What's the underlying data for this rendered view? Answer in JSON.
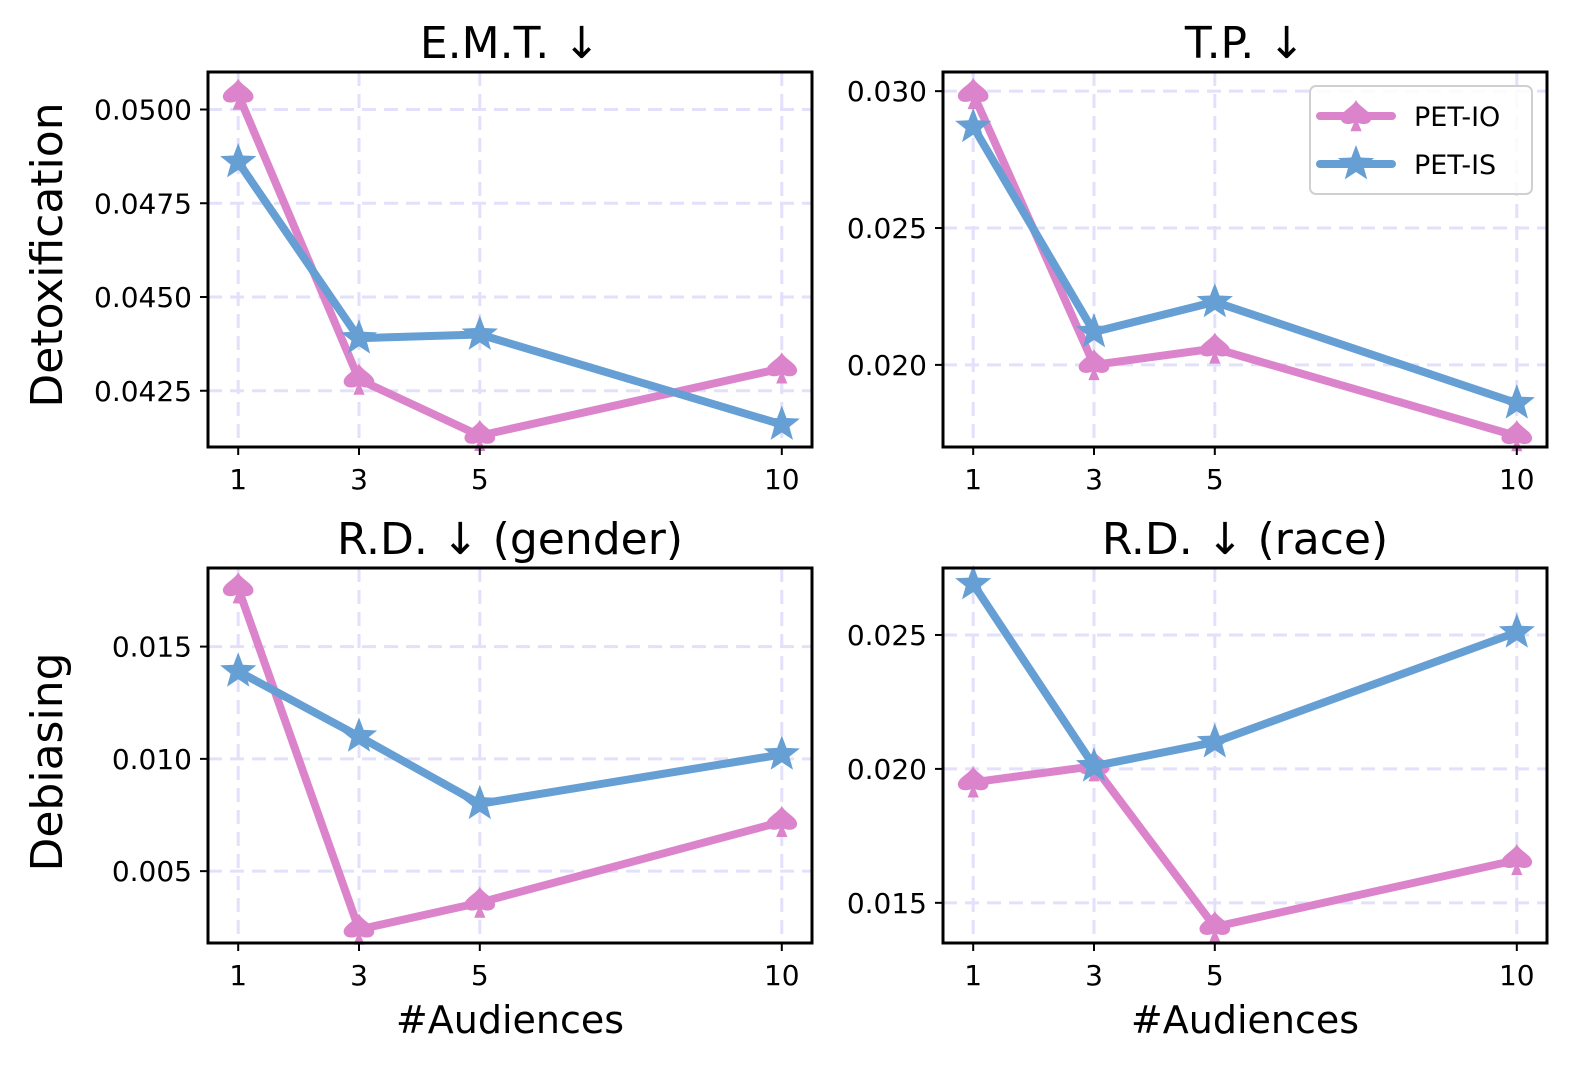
{
  "colors": {
    "pet_io": "#db84cc",
    "pet_is": "#669fd4",
    "grid": "#e2e0fb",
    "frame": "#000000"
  },
  "row_labels": [
    "Detoxification",
    "Debiasing"
  ],
  "xlabel": "#Audiences",
  "legend": {
    "placement": "upper right of the T.P. panel",
    "entries": [
      {
        "label": "PET-IO",
        "marker": "spade",
        "color": "#db84cc"
      },
      {
        "label": "PET-IS",
        "marker": "star",
        "color": "#669fd4"
      }
    ]
  },
  "chart_data": [
    {
      "type": "line",
      "title": "E.M.T. ↓",
      "xlabel": "",
      "ylabel": "Detoxification",
      "x": [
        1,
        3,
        5,
        10
      ],
      "xlim": [
        0.5,
        10.5
      ],
      "ylim": [
        0.041,
        0.051
      ],
      "xticks": [
        "1",
        "3",
        "5",
        "10"
      ],
      "yticks": [
        "0.0425",
        "0.0450",
        "0.0475",
        "0.0500"
      ],
      "grid": true,
      "series": [
        {
          "name": "PET-IO",
          "values": [
            0.0504,
            0.0428,
            0.0413,
            0.0431
          ]
        },
        {
          "name": "PET-IS",
          "values": [
            0.0486,
            0.0439,
            0.044,
            0.0416
          ]
        }
      ]
    },
    {
      "type": "line",
      "title": "T.P. ↓",
      "xlabel": "",
      "ylabel": "",
      "x": [
        1,
        3,
        5,
        10
      ],
      "xlim": [
        0.5,
        10.5
      ],
      "ylim": [
        0.017,
        0.0307
      ],
      "xticks": [
        "1",
        "3",
        "5",
        "10"
      ],
      "yticks": [
        "0.020",
        "0.025",
        "0.030"
      ],
      "grid": true,
      "legend": true,
      "series": [
        {
          "name": "PET-IO",
          "values": [
            0.0299,
            0.02,
            0.0206,
            0.0174
          ]
        },
        {
          "name": "PET-IS",
          "values": [
            0.0287,
            0.0212,
            0.0223,
            0.0186
          ]
        }
      ]
    },
    {
      "type": "line",
      "title": "R.D. ↓ (gender)",
      "xlabel": "#Audiences",
      "ylabel": "Debiasing",
      "x": [
        1,
        3,
        5,
        10
      ],
      "xlim": [
        0.5,
        10.5
      ],
      "ylim": [
        0.0018,
        0.0185
      ],
      "xticks": [
        "1",
        "3",
        "5",
        "10"
      ],
      "yticks": [
        "0.005",
        "0.010",
        "0.015"
      ],
      "grid": true,
      "series": [
        {
          "name": "PET-IO",
          "values": [
            0.0176,
            0.0024,
            0.0036,
            0.0072
          ]
        },
        {
          "name": "PET-IS",
          "values": [
            0.0139,
            0.011,
            0.008,
            0.0102
          ]
        }
      ]
    },
    {
      "type": "line",
      "title": "R.D. ↓ (race)",
      "xlabel": "#Audiences",
      "ylabel": "",
      "x": [
        1,
        3,
        5,
        10
      ],
      "xlim": [
        0.5,
        10.5
      ],
      "ylim": [
        0.0135,
        0.0275
      ],
      "xticks": [
        "1",
        "3",
        "5",
        "10"
      ],
      "yticks": [
        "0.015",
        "0.020",
        "0.025"
      ],
      "grid": true,
      "series": [
        {
          "name": "PET-IO",
          "values": [
            0.0195,
            0.0201,
            0.0141,
            0.0166
          ]
        },
        {
          "name": "PET-IS",
          "values": [
            0.0269,
            0.0201,
            0.021,
            0.0251
          ]
        }
      ]
    }
  ]
}
